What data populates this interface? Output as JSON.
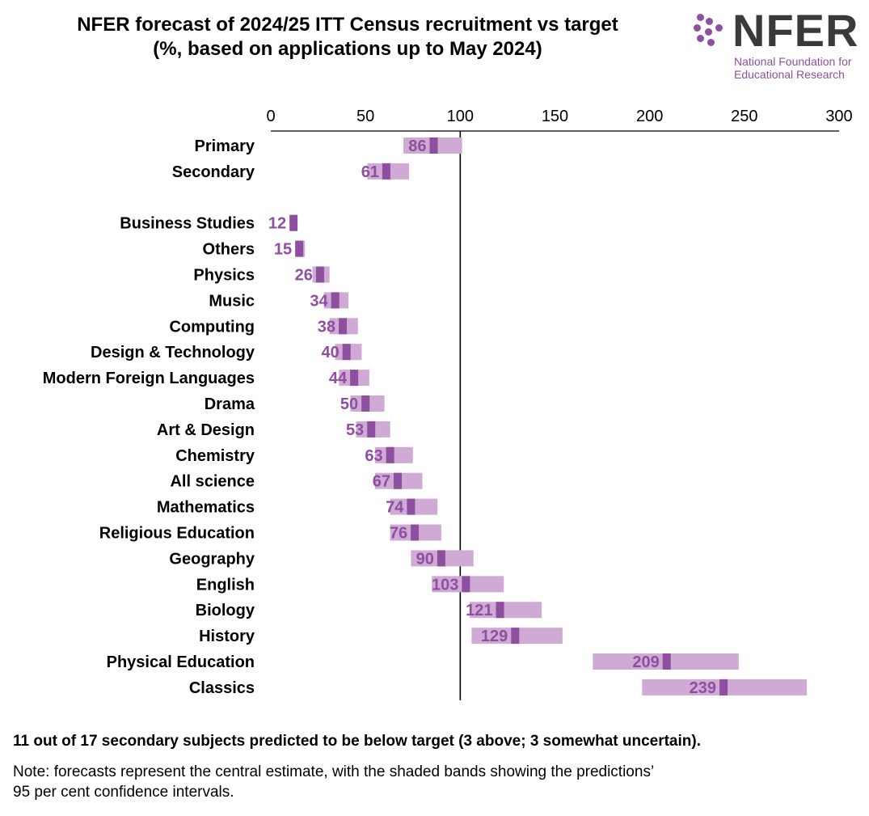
{
  "title": {
    "line1": "NFER forecast of 2024/25 ITT Census recruitment vs target",
    "line2": "(%, based on applications up to May 2024)"
  },
  "logo": {
    "word": "NFER",
    "sub_line1": "National Foundation for",
    "sub_line2": "Educational Research",
    "icon": "dots-icon",
    "color": "#8e4fa0"
  },
  "chart_data": {
    "type": "bar",
    "orientation": "horizontal",
    "title": "NFER forecast of 2024/25 ITT Census recruitment vs target (%, based on applications up to May 2024)",
    "xlabel": "",
    "ylabel": "",
    "xlim": [
      0,
      300
    ],
    "xticks": [
      0,
      50,
      100,
      150,
      200,
      250,
      300
    ],
    "reference_line": 100,
    "axis_position": "top",
    "grid": false,
    "legend": "none",
    "band_color": "#cfaad5",
    "point_color": "#8e4fa0",
    "label_color": "#8e4fa0",
    "categories": [
      "Primary",
      "Secondary",
      "Business Studies",
      "Others",
      "Physics",
      "Music",
      "Computing",
      "Design & Technology",
      "Modern Foreign Languages",
      "Drama",
      "Art & Design",
      "Chemistry",
      "All science",
      "Mathematics",
      "Religious Education",
      "Geography",
      "English",
      "Biology",
      "History",
      "Physical Education",
      "Classics"
    ],
    "groups": [
      [
        "Primary",
        "Secondary"
      ],
      [
        "Business Studies",
        "Others",
        "Physics",
        "Music",
        "Computing",
        "Design & Technology",
        "Modern Foreign Languages",
        "Drama",
        "Art & Design",
        "Chemistry",
        "All science",
        "Mathematics",
        "Religious Education",
        "Geography",
        "English",
        "Biology",
        "History",
        "Physical Education",
        "Classics"
      ]
    ],
    "series": [
      {
        "name": "Central estimate",
        "values": [
          86,
          61,
          12,
          15,
          26,
          34,
          38,
          40,
          44,
          50,
          53,
          63,
          67,
          74,
          76,
          90,
          103,
          121,
          129,
          209,
          239
        ]
      },
      {
        "name": "95% CI lower",
        "values": [
          70,
          51,
          11,
          13,
          22,
          28,
          31,
          34,
          36,
          42,
          45,
          55,
          55,
          63,
          63,
          74,
          85,
          105,
          106,
          170,
          196
        ]
      },
      {
        "name": "95% CI upper",
        "values": [
          101,
          73,
          14,
          18,
          31,
          41,
          46,
          48,
          52,
          60,
          63,
          75,
          80,
          88,
          90,
          107,
          123,
          143,
          154,
          247,
          283
        ]
      }
    ]
  },
  "footer": {
    "summary": "11 out of 17 secondary subjects predicted to be below target (3 above; 3 somewhat uncertain).",
    "note_line1": "Note: forecasts represent the central estimate, with the shaded bands showing the predictions’",
    "note_line2": "95 per cent confidence intervals."
  }
}
